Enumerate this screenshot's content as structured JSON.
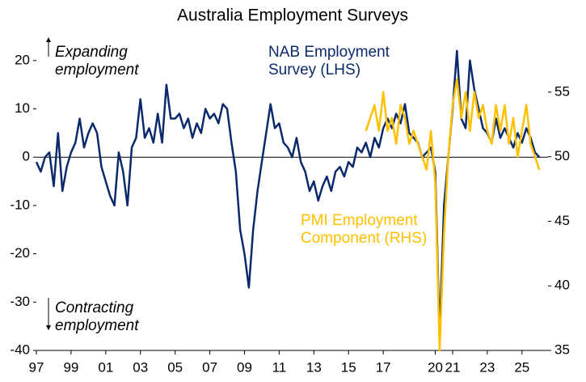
{
  "chart_data": {
    "type": "line",
    "title": "Australia Employment Surveys",
    "annotations": [
      "Expanding employment",
      "Contracting employment"
    ],
    "xlim": [
      1997,
      2026.5
    ],
    "xticks": [
      {
        "value": 1997,
        "label": "97"
      },
      {
        "value": 1999,
        "label": "99"
      },
      {
        "value": 2001,
        "label": "01"
      },
      {
        "value": 2003,
        "label": "03"
      },
      {
        "value": 2005,
        "label": "05"
      },
      {
        "value": 2007,
        "label": "07"
      },
      {
        "value": 2009,
        "label": "09"
      },
      {
        "value": 2011,
        "label": "11"
      },
      {
        "value": 2013,
        "label": "13"
      },
      {
        "value": 2015,
        "label": "15"
      },
      {
        "value": 2017,
        "label": "17"
      },
      {
        "value": 2020,
        "label": "20"
      },
      {
        "value": 2021,
        "label": "21"
      },
      {
        "value": 2023,
        "label": "23"
      },
      {
        "value": 2025,
        "label": "25"
      }
    ],
    "ylim": [
      -40,
      25.5
    ],
    "yticks": [
      -40,
      -30,
      -20,
      -10,
      0,
      10,
      20
    ],
    "y2lim": [
      35,
      59.5
    ],
    "y2ticks": [
      35,
      40,
      45,
      50,
      55
    ],
    "series": [
      {
        "name": "NAB Employment Survey (LHS)",
        "color": "#0b2a6b",
        "x": [
          1997,
          1997.25,
          1997.5,
          1997.75,
          1998,
          1998.25,
          1998.5,
          1998.75,
          1999,
          1999.25,
          1999.5,
          1999.75,
          2000,
          2000.25,
          2000.5,
          2000.75,
          2001,
          2001.25,
          2001.5,
          2001.75,
          2002,
          2002.25,
          2002.5,
          2002.75,
          2003,
          2003.25,
          2003.5,
          2003.75,
          2004,
          2004.25,
          2004.5,
          2004.75,
          2005,
          2005.25,
          2005.5,
          2005.75,
          2006,
          2006.25,
          2006.5,
          2006.75,
          2007,
          2007.25,
          2007.5,
          2007.75,
          2008,
          2008.25,
          2008.5,
          2008.75,
          2009,
          2009.25,
          2009.5,
          2009.75,
          2010,
          2010.25,
          2010.5,
          2010.75,
          2011,
          2011.25,
          2011.5,
          2011.75,
          2012,
          2012.25,
          2012.5,
          2012.75,
          2013,
          2013.25,
          2013.5,
          2013.75,
          2014,
          2014.25,
          2014.5,
          2014.75,
          2015,
          2015.25,
          2015.5,
          2015.75,
          2016,
          2016.25,
          2016.5,
          2016.75,
          2017,
          2017.25,
          2017.5,
          2017.75,
          2018,
          2018.25,
          2018.5,
          2018.75,
          2019,
          2019.25,
          2019.5,
          2019.75,
          2020,
          2020.25,
          2020.5,
          2020.75,
          2021,
          2021.25,
          2021.5,
          2021.75,
          2022,
          2022.25,
          2022.5,
          2022.75,
          2023,
          2023.25,
          2023.5,
          2023.75,
          2024,
          2024.25,
          2024.5,
          2024.75,
          2025,
          2025.25,
          2025.5,
          2025.75,
          2026
        ],
        "values": [
          -1,
          -3,
          0,
          1,
          -6,
          5,
          -7,
          -2,
          1,
          3,
          8,
          2,
          5,
          7,
          5,
          -2,
          -5,
          -8,
          -10,
          1,
          -3,
          -10,
          2,
          4,
          12,
          4,
          6,
          3,
          9,
          3,
          15,
          8,
          8,
          9,
          6,
          8,
          4,
          7,
          5,
          10,
          8,
          9,
          7,
          11,
          10,
          3,
          -3,
          -15,
          -20,
          -27,
          -15,
          -7,
          -1,
          5,
          11,
          6,
          7,
          3,
          2,
          0,
          4,
          -1,
          -3,
          -7,
          -5,
          -9,
          -6,
          -4,
          -7,
          -3,
          -2,
          -4,
          -1,
          -2,
          2,
          1,
          3,
          0,
          4,
          2,
          6,
          8,
          6,
          9,
          7,
          11,
          5,
          4,
          3,
          0,
          1,
          2,
          -3,
          -37,
          -10,
          0,
          10,
          22,
          8,
          6,
          20,
          14,
          10,
          6,
          5,
          3,
          8,
          4,
          6,
          4,
          2,
          5,
          3,
          6,
          4,
          1,
          0
        ]
      },
      {
        "name": "PMI Employment Component (RHS)",
        "color": "#ffc000",
        "axis": "y2",
        "x": [
          2016,
          2016.25,
          2016.5,
          2016.75,
          2017,
          2017.25,
          2017.5,
          2017.75,
          2018,
          2018.25,
          2018.5,
          2018.75,
          2019,
          2019.25,
          2019.5,
          2019.75,
          2020,
          2020.25,
          2020.5,
          2020.75,
          2021,
          2021.25,
          2021.5,
          2021.75,
          2022,
          2022.25,
          2022.5,
          2022.75,
          2023,
          2023.25,
          2023.5,
          2023.75,
          2024,
          2024.25,
          2024.5,
          2024.75,
          2025,
          2025.25,
          2025.5,
          2025.75,
          2026
        ],
        "values": [
          52,
          53,
          54,
          52,
          55,
          52,
          53,
          51,
          54,
          53,
          51,
          52,
          51,
          50,
          49,
          52,
          48,
          35,
          44,
          50,
          54,
          56,
          53,
          55,
          52,
          55,
          53,
          54,
          52,
          51,
          54,
          52,
          54,
          51,
          53,
          50,
          52,
          54,
          51,
          50,
          49
        ]
      }
    ]
  }
}
